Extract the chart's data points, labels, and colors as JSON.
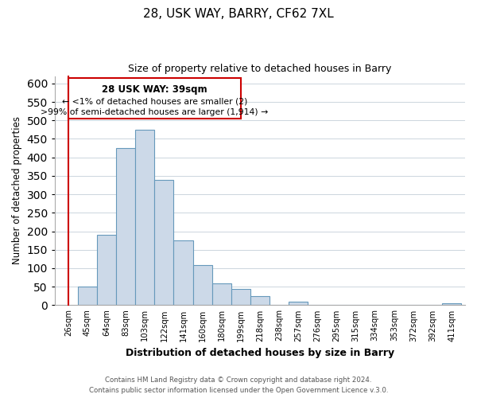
{
  "title": "28, USK WAY, BARRY, CF62 7XL",
  "subtitle": "Size of property relative to detached houses in Barry",
  "xlabel": "Distribution of detached houses by size in Barry",
  "ylabel": "Number of detached properties",
  "bar_labels": [
    "26sqm",
    "45sqm",
    "64sqm",
    "83sqm",
    "103sqm",
    "122sqm",
    "141sqm",
    "160sqm",
    "180sqm",
    "199sqm",
    "218sqm",
    "238sqm",
    "257sqm",
    "276sqm",
    "295sqm",
    "315sqm",
    "334sqm",
    "353sqm",
    "372sqm",
    "392sqm",
    "411sqm"
  ],
  "bar_heights": [
    0,
    50,
    190,
    425,
    475,
    340,
    175,
    108,
    60,
    44,
    25,
    0,
    10,
    0,
    0,
    0,
    0,
    0,
    0,
    0,
    5
  ],
  "bar_color": "#ccd9e8",
  "bar_edge_color": "#6699bb",
  "highlight_color": "#cc0000",
  "ylim": [
    0,
    620
  ],
  "yticks": [
    0,
    50,
    100,
    150,
    200,
    250,
    300,
    350,
    400,
    450,
    500,
    550,
    600
  ],
  "annotation_title": "28 USK WAY: 39sqm",
  "annotation_line1": "← <1% of detached houses are smaller (2)",
  "annotation_line2": ">99% of semi-detached houses are larger (1,914) →",
  "footer_line1": "Contains HM Land Registry data © Crown copyright and database right 2024.",
  "footer_line2": "Contains public sector information licensed under the Open Government Licence v.3.0.",
  "background_color": "#ffffff",
  "grid_color": "#ccd5dd"
}
